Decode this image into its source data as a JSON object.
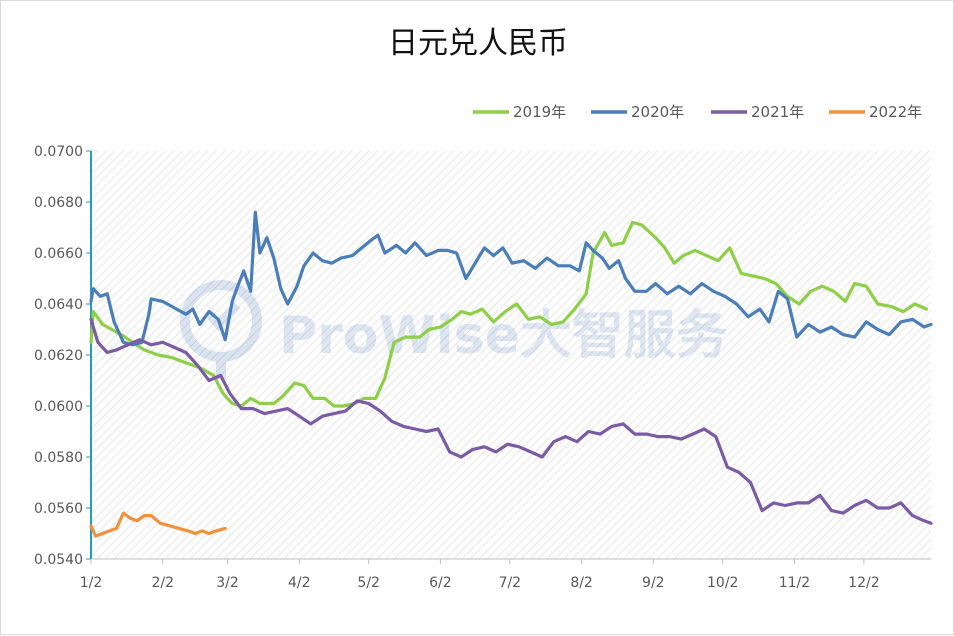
{
  "chart_data": {
    "type": "line",
    "title": "日元兑人民币",
    "xlabel": "",
    "ylabel": "",
    "x_ticks": [
      "1/2",
      "2/2",
      "3/2",
      "4/2",
      "5/2",
      "6/2",
      "7/2",
      "8/2",
      "9/2",
      "10/2",
      "11/2",
      "12/2"
    ],
    "y_ticks": [
      "0.0540",
      "0.0560",
      "0.0580",
      "0.0600",
      "0.0620",
      "0.0640",
      "0.0660",
      "0.0680",
      "0.0700"
    ],
    "ylim": [
      0.054,
      0.07
    ],
    "xlim": [
      "1/2",
      "12/31"
    ],
    "grid": "diagonal hatch background",
    "legend_position": "top-right",
    "watermark": "ProWise大智服务",
    "series": [
      {
        "name": "2019年",
        "color": "#8dcf46",
        "points": [
          [
            "1/2",
            0.0625
          ],
          [
            "1/3",
            0.0637
          ],
          [
            "1/7",
            0.0632
          ],
          [
            "1/11",
            0.063
          ],
          [
            "1/15",
            0.0628
          ],
          [
            "1/20",
            0.0625
          ],
          [
            "1/25",
            0.0622
          ],
          [
            "1/31",
            0.062
          ],
          [
            "2/6",
            0.0619
          ],
          [
            "2/12",
            0.0617
          ],
          [
            "2/18",
            0.0615
          ],
          [
            "2/24",
            0.0612
          ],
          [
            "2/28",
            0.0605
          ],
          [
            "3/4",
            0.0601
          ],
          [
            "3/8",
            0.06
          ],
          [
            "3/12",
            0.0603
          ],
          [
            "3/16",
            0.0601
          ],
          [
            "3/22",
            0.0601
          ],
          [
            "3/26",
            0.0604
          ],
          [
            "3/31",
            0.0609
          ],
          [
            "4/4",
            0.0608
          ],
          [
            "4/8",
            0.0603
          ],
          [
            "4/13",
            0.0603
          ],
          [
            "4/17",
            0.06
          ],
          [
            "4/21",
            0.06
          ],
          [
            "4/26",
            0.0601
          ],
          [
            "4/30",
            0.0603
          ],
          [
            "5/5",
            0.0603
          ],
          [
            "5/9",
            0.0611
          ],
          [
            "5/13",
            0.0625
          ],
          [
            "5/18",
            0.0627
          ],
          [
            "5/24",
            0.0627
          ],
          [
            "5/28",
            0.063
          ],
          [
            "6/2",
            0.0631
          ],
          [
            "6/7",
            0.0634
          ],
          [
            "6/11",
            0.0637
          ],
          [
            "6/15",
            0.0636
          ],
          [
            "6/20",
            0.0638
          ],
          [
            "6/25",
            0.0633
          ],
          [
            "6/30",
            0.0637
          ],
          [
            "7/5",
            0.064
          ],
          [
            "7/10",
            0.0634
          ],
          [
            "7/15",
            0.0635
          ],
          [
            "7/20",
            0.0632
          ],
          [
            "7/25",
            0.0633
          ],
          [
            "7/30",
            0.0638
          ],
          [
            "8/4",
            0.0644
          ],
          [
            "8/7",
            0.066
          ],
          [
            "8/12",
            0.0668
          ],
          [
            "8/15",
            0.0663
          ],
          [
            "8/20",
            0.0664
          ],
          [
            "8/24",
            0.0672
          ],
          [
            "8/28",
            0.0671
          ],
          [
            "9/3",
            0.0666
          ],
          [
            "9/7",
            0.0662
          ],
          [
            "9/11",
            0.0656
          ],
          [
            "9/15",
            0.0659
          ],
          [
            "9/20",
            0.0661
          ],
          [
            "9/25",
            0.0659
          ],
          [
            "9/30",
            0.0657
          ],
          [
            "10/5",
            0.0662
          ],
          [
            "10/10",
            0.0652
          ],
          [
            "10/15",
            0.0651
          ],
          [
            "10/20",
            0.065
          ],
          [
            "10/25",
            0.0648
          ],
          [
            "10/30",
            0.0643
          ],
          [
            "11/4",
            0.064
          ],
          [
            "11/9",
            0.0645
          ],
          [
            "11/14",
            0.0647
          ],
          [
            "11/19",
            0.0645
          ],
          [
            "11/24",
            0.0641
          ],
          [
            "11/28",
            0.0648
          ],
          [
            "12/3",
            0.0647
          ],
          [
            "12/8",
            0.064
          ],
          [
            "12/14",
            0.0639
          ],
          [
            "12/19",
            0.0637
          ],
          [
            "12/24",
            0.064
          ],
          [
            "12/29",
            0.0638
          ]
        ]
      },
      {
        "name": "2020年",
        "color": "#4a7ebb",
        "points": [
          [
            "1/2",
            0.0641
          ],
          [
            "1/3",
            0.0646
          ],
          [
            "1/6",
            0.0643
          ],
          [
            "1/9",
            0.0644
          ],
          [
            "1/12",
            0.0633
          ],
          [
            "1/16",
            0.0625
          ],
          [
            "1/20",
            0.0624
          ],
          [
            "1/24",
            0.0625
          ],
          [
            "1/27",
            0.0636
          ],
          [
            "1/28",
            0.0642
          ],
          [
            "2/2",
            0.0641
          ],
          [
            "2/8",
            0.0638
          ],
          [
            "2/12",
            0.0636
          ],
          [
            "2/15",
            0.0638
          ],
          [
            "2/18",
            0.0632
          ],
          [
            "2/22",
            0.0637
          ],
          [
            "2/26",
            0.0634
          ],
          [
            "3/1",
            0.0626
          ],
          [
            "3/4",
            0.0641
          ],
          [
            "3/6",
            0.0646
          ],
          [
            "3/9",
            0.0653
          ],
          [
            "3/12",
            0.0645
          ],
          [
            "3/14",
            0.0676
          ],
          [
            "3/16",
            0.066
          ],
          [
            "3/19",
            0.0666
          ],
          [
            "3/22",
            0.0658
          ],
          [
            "3/25",
            0.0646
          ],
          [
            "3/28",
            0.064
          ],
          [
            "4/1",
            0.0647
          ],
          [
            "4/4",
            0.0655
          ],
          [
            "4/8",
            0.066
          ],
          [
            "4/12",
            0.0657
          ],
          [
            "4/16",
            0.0656
          ],
          [
            "4/20",
            0.0658
          ],
          [
            "4/25",
            0.0659
          ],
          [
            "4/29",
            0.0662
          ],
          [
            "5/3",
            0.0665
          ],
          [
            "5/6",
            0.0667
          ],
          [
            "5/9",
            0.066
          ],
          [
            "5/14",
            0.0663
          ],
          [
            "5/18",
            0.066
          ],
          [
            "5/22",
            0.0664
          ],
          [
            "5/27",
            0.0659
          ],
          [
            "6/1",
            0.0661
          ],
          [
            "6/5",
            0.0661
          ],
          [
            "6/9",
            0.066
          ],
          [
            "6/13",
            0.065
          ],
          [
            "6/17",
            0.0656
          ],
          [
            "6/21",
            0.0662
          ],
          [
            "6/25",
            0.0659
          ],
          [
            "6/29",
            0.0662
          ],
          [
            "7/3",
            0.0656
          ],
          [
            "7/8",
            0.0657
          ],
          [
            "7/13",
            0.0654
          ],
          [
            "7/18",
            0.0658
          ],
          [
            "7/23",
            0.0655
          ],
          [
            "7/28",
            0.0655
          ],
          [
            "8/1",
            0.0653
          ],
          [
            "8/4",
            0.0664
          ],
          [
            "8/7",
            0.0661
          ],
          [
            "8/11",
            0.0658
          ],
          [
            "8/14",
            0.0654
          ],
          [
            "8/18",
            0.0657
          ],
          [
            "8/21",
            0.065
          ],
          [
            "8/25",
            0.0645
          ],
          [
            "8/30",
            0.0645
          ],
          [
            "9/3",
            0.0648
          ],
          [
            "9/8",
            0.0644
          ],
          [
            "9/13",
            0.0647
          ],
          [
            "9/18",
            0.0644
          ],
          [
            "9/23",
            0.0648
          ],
          [
            "9/28",
            0.0645
          ],
          [
            "10/3",
            0.0643
          ],
          [
            "10/8",
            0.064
          ],
          [
            "10/13",
            0.0635
          ],
          [
            "10/18",
            0.0638
          ],
          [
            "10/22",
            0.0633
          ],
          [
            "10/26",
            0.0645
          ],
          [
            "10/30",
            0.0642
          ],
          [
            "11/3",
            0.0627
          ],
          [
            "11/8",
            0.0632
          ],
          [
            "11/13",
            0.0629
          ],
          [
            "11/18",
            0.0631
          ],
          [
            "11/23",
            0.0628
          ],
          [
            "11/28",
            0.0627
          ],
          [
            "12/3",
            0.0633
          ],
          [
            "12/8",
            0.063
          ],
          [
            "12/13",
            0.0628
          ],
          [
            "12/18",
            0.0633
          ],
          [
            "12/23",
            0.0634
          ],
          [
            "12/28",
            0.0631
          ],
          [
            "12/31",
            0.0632
          ]
        ]
      },
      {
        "name": "2021年",
        "color": "#7b5aa6",
        "points": [
          [
            "1/2",
            0.0634
          ],
          [
            "1/5",
            0.0625
          ],
          [
            "1/9",
            0.0621
          ],
          [
            "1/13",
            0.0622
          ],
          [
            "1/18",
            0.0624
          ],
          [
            "1/23",
            0.0626
          ],
          [
            "1/28",
            0.0624
          ],
          [
            "2/2",
            0.0625
          ],
          [
            "2/7",
            0.0623
          ],
          [
            "2/12",
            0.0621
          ],
          [
            "2/17",
            0.0616
          ],
          [
            "2/22",
            0.061
          ],
          [
            "2/27",
            0.0612
          ],
          [
            "3/3",
            0.0605
          ],
          [
            "3/8",
            0.0599
          ],
          [
            "3/13",
            0.0599
          ],
          [
            "3/18",
            0.0597
          ],
          [
            "3/23",
            0.0598
          ],
          [
            "3/28",
            0.0599
          ],
          [
            "4/2",
            0.0596
          ],
          [
            "4/7",
            0.0593
          ],
          [
            "4/12",
            0.0596
          ],
          [
            "4/17",
            0.0597
          ],
          [
            "4/22",
            0.0598
          ],
          [
            "4/27",
            0.0602
          ],
          [
            "5/2",
            0.0601
          ],
          [
            "5/7",
            0.0598
          ],
          [
            "5/12",
            0.0594
          ],
          [
            "5/17",
            0.0592
          ],
          [
            "5/22",
            0.0591
          ],
          [
            "5/27",
            0.059
          ],
          [
            "6/1",
            0.0591
          ],
          [
            "6/6",
            0.0582
          ],
          [
            "6/11",
            0.058
          ],
          [
            "6/16",
            0.0583
          ],
          [
            "6/21",
            0.0584
          ],
          [
            "6/26",
            0.0582
          ],
          [
            "7/1",
            0.0585
          ],
          [
            "7/6",
            0.0584
          ],
          [
            "7/11",
            0.0582
          ],
          [
            "7/16",
            0.058
          ],
          [
            "7/21",
            0.0586
          ],
          [
            "7/26",
            0.0588
          ],
          [
            "7/31",
            0.0586
          ],
          [
            "8/5",
            0.059
          ],
          [
            "8/10",
            0.0589
          ],
          [
            "8/15",
            0.0592
          ],
          [
            "8/20",
            0.0593
          ],
          [
            "8/25",
            0.0589
          ],
          [
            "8/30",
            0.0589
          ],
          [
            "9/4",
            0.0588
          ],
          [
            "9/9",
            0.0588
          ],
          [
            "9/14",
            0.0587
          ],
          [
            "9/19",
            0.0589
          ],
          [
            "9/24",
            0.0591
          ],
          [
            "9/29",
            0.0588
          ],
          [
            "10/4",
            0.0576
          ],
          [
            "10/9",
            0.0574
          ],
          [
            "10/14",
            0.057
          ],
          [
            "10/19",
            0.0559
          ],
          [
            "10/24",
            0.0562
          ],
          [
            "10/29",
            0.0561
          ],
          [
            "11/3",
            0.0562
          ],
          [
            "11/8",
            0.0562
          ],
          [
            "11/13",
            0.0565
          ],
          [
            "11/18",
            0.0559
          ],
          [
            "11/23",
            0.0558
          ],
          [
            "11/28",
            0.0561
          ],
          [
            "12/3",
            0.0563
          ],
          [
            "12/8",
            0.056
          ],
          [
            "12/13",
            0.056
          ],
          [
            "12/18",
            0.0562
          ],
          [
            "12/23",
            0.0557
          ],
          [
            "12/28",
            0.0555
          ],
          [
            "12/31",
            0.0554
          ]
        ]
      },
      {
        "name": "2022年",
        "color": "#f0913b",
        "points": [
          [
            "1/2",
            0.0553
          ],
          [
            "1/4",
            0.0549
          ],
          [
            "1/7",
            0.055
          ],
          [
            "1/10",
            0.0551
          ],
          [
            "1/13",
            0.0552
          ],
          [
            "1/16",
            0.0558
          ],
          [
            "1/19",
            0.0556
          ],
          [
            "1/22",
            0.0555
          ],
          [
            "1/25",
            0.0557
          ],
          [
            "1/28",
            0.0557
          ],
          [
            "2/1",
            0.0554
          ],
          [
            "2/5",
            0.0553
          ],
          [
            "2/9",
            0.0552
          ],
          [
            "2/13",
            0.0551
          ],
          [
            "2/16",
            0.055
          ],
          [
            "2/19",
            0.0551
          ],
          [
            "2/22",
            0.055
          ],
          [
            "2/25",
            0.0551
          ],
          [
            "3/1",
            0.0552
          ]
        ]
      }
    ]
  }
}
